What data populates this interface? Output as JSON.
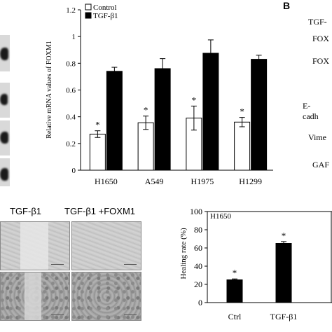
{
  "panel_b_label": "B",
  "panel_b_labels": [
    "TGF-",
    "FOX",
    "FOX",
    "E-cadh",
    "Vime",
    "GAF"
  ],
  "wound_headers": [
    "TGF-β1",
    "TGF-β1 +FOXM1"
  ],
  "chart_data": [
    {
      "type": "bar",
      "categories": [
        "H1650",
        "A549",
        "H1975",
        "H1299"
      ],
      "series": [
        {
          "name": "Control",
          "values": [
            0.27,
            0.355,
            0.39,
            0.36
          ],
          "errors": [
            0.025,
            0.05,
            0.09,
            0.035
          ],
          "color": "#ffffff"
        },
        {
          "name": "TGF-β1",
          "values": [
            0.74,
            0.76,
            0.875,
            0.83
          ],
          "errors": [
            0.03,
            0.075,
            0.1,
            0.03
          ],
          "color": "#000000"
        }
      ],
      "annotations": [
        "*",
        "*",
        "*",
        "*"
      ],
      "ylabel": "Relative mRNA values of FOXM1",
      "ylim": [
        0,
        1.2
      ],
      "yticks": [
        "0",
        "0.2",
        "0.4",
        "0.6",
        "0.8",
        "1",
        "1.2"
      ],
      "legend_placement": "top-left"
    },
    {
      "type": "bar",
      "title": "H1650",
      "categories": [
        "Ctrl",
        "TGF-β1"
      ],
      "values": [
        25,
        65
      ],
      "errors": [
        1,
        2
      ],
      "annotations": [
        "*",
        "*"
      ],
      "ylabel": "Healing rate (%)",
      "ylim": [
        0,
        100
      ],
      "yticks": [
        "0",
        "20",
        "40",
        "60",
        "80",
        "100"
      ]
    }
  ]
}
